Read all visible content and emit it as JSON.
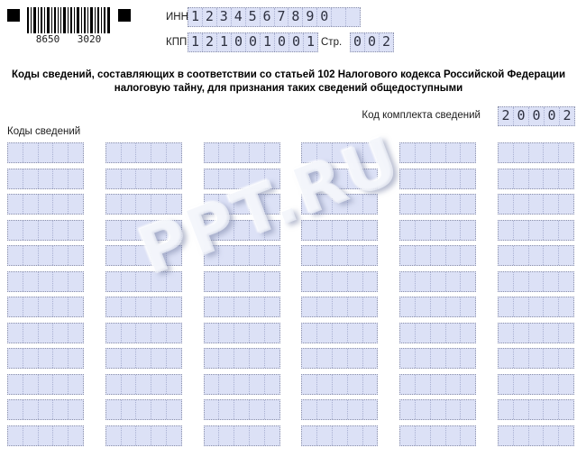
{
  "colors": {
    "field_fill": "#dce1f6",
    "field_border": "#8b90aa",
    "field_sep": "#a9b0d2",
    "digit_color": "#2e3140"
  },
  "barcode": {
    "left_digits": "8650",
    "right_digits": "3020"
  },
  "form": {
    "inn": {
      "label": "ИНН",
      "value": "1234567890",
      "cells": 12
    },
    "kpp": {
      "label": "КПП",
      "value": "121001001",
      "cells": 9
    },
    "page_num": {
      "label": "Стр.",
      "value": "002",
      "cells": 3
    },
    "title_line1": "Коды сведений, составляющих в соответствии со статьей 102 Налогового кодекса Российской Федерации",
    "title_line2": "налоговую тайну, для признания таких сведений общедоступными",
    "kit_code": {
      "label": "Код комплекта сведений",
      "value": "20002",
      "cells": 5
    },
    "codes_section": {
      "label": "Коды сведений",
      "columns": 6,
      "rows": 12,
      "cells_per_field": 5,
      "values": []
    }
  },
  "watermark": "PPT.RU"
}
